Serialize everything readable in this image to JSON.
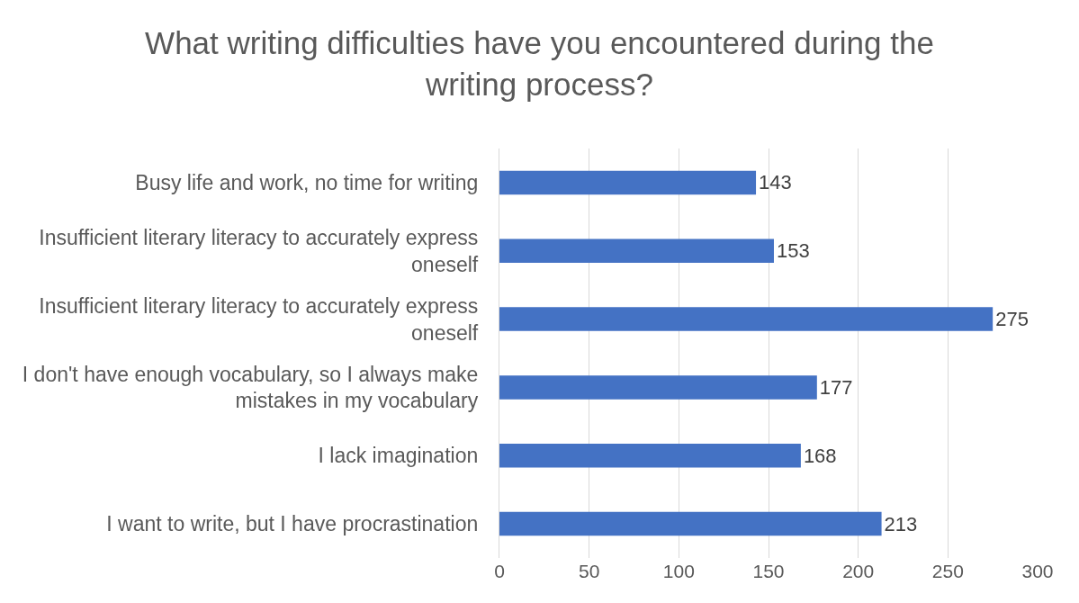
{
  "chart_data": {
    "type": "bar",
    "orientation": "horizontal",
    "title": "What writing difficulties have you encountered during the writing process?",
    "categories": [
      "Busy life and work, no time for writing",
      "Insufficient literary literacy to accurately express oneself",
      "Insufficient literary literacy to accurately express oneself",
      "I don't have enough vocabulary, so I always make mistakes in my vocabulary",
      "I lack imagination",
      "I want to write, but I have procrastination"
    ],
    "values": [
      143,
      153,
      275,
      177,
      168,
      213
    ],
    "color": "#4472c4",
    "xlim": [
      0,
      300
    ],
    "xticks": [
      0,
      50,
      100,
      150,
      200,
      250,
      300
    ],
    "grid": "x",
    "data_labels": true
  }
}
